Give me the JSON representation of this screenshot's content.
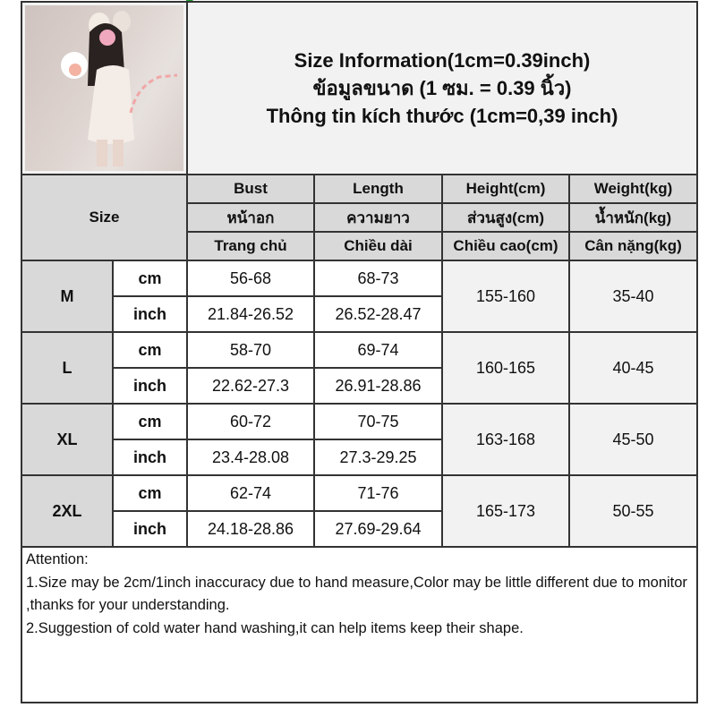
{
  "title_lines": [
    "Size Information(1cm=0.39inch)",
    "ข้อมูลขนาด (1 ซม. = 0.39 นิ้ว)",
    "Thông tin kích thước (1cm=0,39 inch)"
  ],
  "size_label": "Size",
  "headers": [
    [
      "Bust",
      "Length",
      "Height(cm)",
      "Weight(kg)"
    ],
    [
      "หน้าอก",
      "ความยาว",
      "ส่วนสูง(cm)",
      "น้ำหนัก(kg)"
    ],
    [
      "Trang chủ",
      "Chiều dài",
      "Chiều cao(cm)",
      "Cân nặng(kg)"
    ]
  ],
  "rows": [
    {
      "size": "M",
      "cm_label": "cm",
      "inch_label": "inch",
      "bust_cm": "56-68",
      "length_cm": "68-73",
      "bust_inch": "21.84-26.52",
      "length_inch": "26.52-28.47",
      "height": "155-160",
      "weight": "35-40"
    },
    {
      "size": "L",
      "cm_label": "cm",
      "inch_label": "inch",
      "bust_cm": "58-70",
      "length_cm": "69-74",
      "bust_inch": "22.62-27.3",
      "length_inch": "26.91-28.86",
      "height": "160-165",
      "weight": "40-45"
    },
    {
      "size": "XL",
      "cm_label": "cm",
      "inch_label": "inch",
      "bust_cm": "60-72",
      "length_cm": "70-75",
      "bust_inch": "23.4-28.08",
      "length_inch": "27.3-29.25",
      "height": "163-168",
      "weight": "45-50"
    },
    {
      "size": "2XL",
      "cm_label": "cm",
      "inch_label": "inch",
      "bust_cm": "62-74",
      "length_cm": "71-76",
      "bust_inch": "24.18-28.86",
      "length_inch": "27.69-29.64",
      "height": "165-173",
      "weight": "50-55"
    }
  ],
  "notes": [
    "Attention:",
    "1.Size may be 2cm/1inch inaccuracy due to hand measure,Color may be little different due to monitor ,thanks for your understanding.",
    "2.Suggestion of cold water hand washing,it can help items keep their shape."
  ],
  "colors": {
    "header_bg": "#d9d9d9",
    "title_bg": "#f2f2f2",
    "border": "#333333"
  }
}
